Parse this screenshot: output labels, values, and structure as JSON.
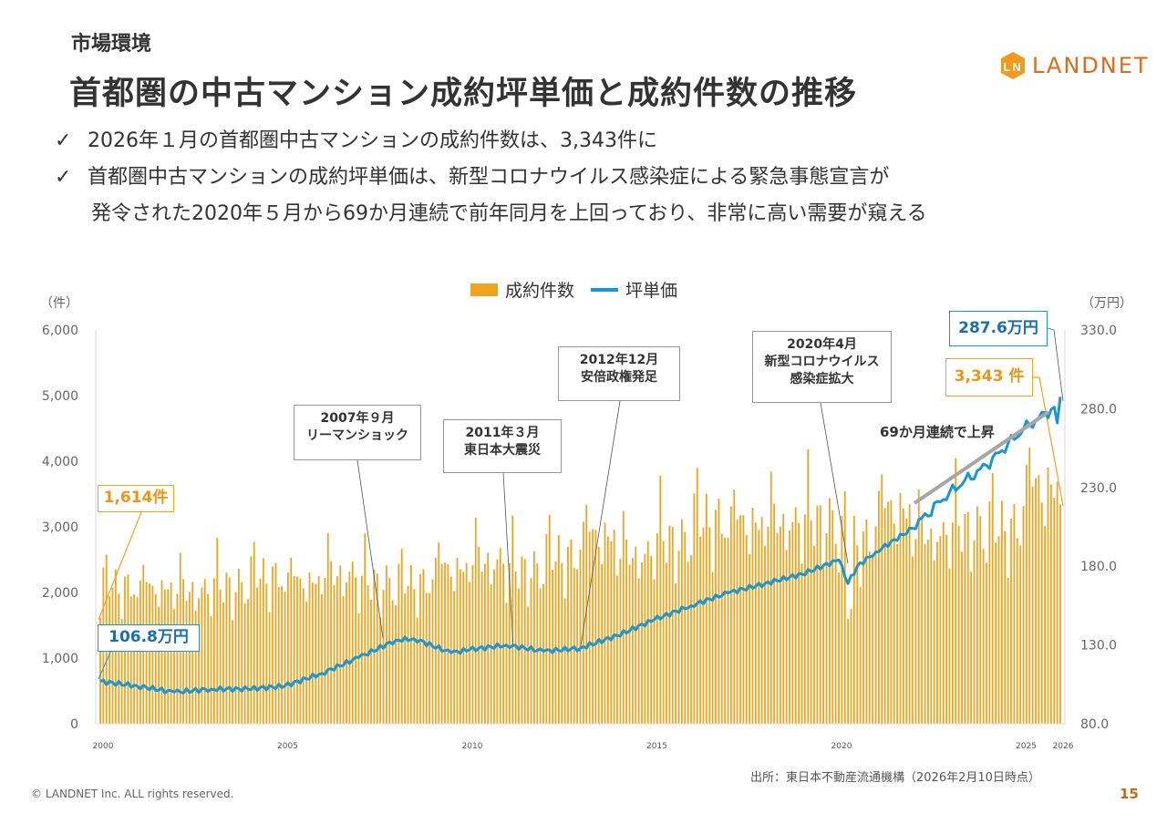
{
  "header": {
    "section": "市場環境",
    "title": "首都圏の中古マンション成約坪単価と成約件数の推移",
    "logo_text": "LANDNET",
    "bullets": [
      "2026年１月の首都圏中古マンションの成約件数は、3,343件に",
      "首都圏中古マンションの成約坪単価は、新型コロナウイルス感染症による緊急事態宣言が",
      "発令された2020年５月から69か月連続で前年同月を上回っており、非常に高い需要が窺える"
    ],
    "check_mark": "✓"
  },
  "chart_data": {
    "type": "bar+line",
    "legend": [
      "成約件数",
      "坪単価"
    ],
    "legend_position": "top-center",
    "y_left": {
      "unit": "（件）",
      "range": [
        0,
        6000
      ],
      "ticks": [
        "0",
        "1,000",
        "2,000",
        "3,000",
        "4,000",
        "5,000",
        "6,000"
      ]
    },
    "y_right": {
      "unit": "（万円）",
      "range": [
        80,
        330
      ],
      "ticks": [
        "80.0",
        "130.0",
        "180.0",
        "230.0",
        "280.0",
        "330.0"
      ]
    },
    "x_ticks": [
      {
        "label": "2000",
        "month_index": 0
      },
      {
        "label": "2005",
        "month_index": 60
      },
      {
        "label": "2010",
        "month_index": 120
      },
      {
        "label": "2015",
        "month_index": 180
      },
      {
        "label": "2020",
        "month_index": 240
      },
      {
        "label": "2025",
        "month_index": 300
      },
      {
        "label": "2026",
        "month_index": 312
      }
    ],
    "period": "2000-01 to 2026-01 (monthly, 313 points)",
    "count_annual_avg": {
      "2000": 2100,
      "2001": 2100,
      "2002": 2050,
      "2003": 2100,
      "2004": 2250,
      "2005": 2200,
      "2006": 2300,
      "2007": 2150,
      "2008": 2150,
      "2009": 2400,
      "2010": 2500,
      "2011": 2350,
      "2012": 2550,
      "2013": 2900,
      "2014": 2600,
      "2015": 2800,
      "2016": 3100,
      "2017": 3100,
      "2018": 3100,
      "2019": 3100,
      "2020": 2800,
      "2021": 3300,
      "2022": 2900,
      "2023": 3000,
      "2024": 3000,
      "2025": 3650
    },
    "count_seasonal_factor": [
      0.85,
      1.05,
      1.25,
      1.0,
      0.95,
      1.05,
      1.0,
      0.8,
      1.0,
      1.05,
      1.0,
      0.95
    ],
    "count_overrides": {
      "0": 1614,
      "243": 1600,
      "244": 1750,
      "312": 3343
    },
    "price_anchors": [
      [
        0,
        106.8
      ],
      [
        12,
        104
      ],
      [
        24,
        100
      ],
      [
        36,
        102
      ],
      [
        48,
        102
      ],
      [
        60,
        104
      ],
      [
        72,
        112
      ],
      [
        84,
        122
      ],
      [
        96,
        133
      ],
      [
        102,
        134
      ],
      [
        114,
        125
      ],
      [
        120,
        127
      ],
      [
        132,
        130
      ],
      [
        144,
        126
      ],
      [
        156,
        128
      ],
      [
        168,
        136
      ],
      [
        180,
        146
      ],
      [
        192,
        155
      ],
      [
        204,
        163
      ],
      [
        216,
        169
      ],
      [
        228,
        175
      ],
      [
        240,
        184
      ],
      [
        243,
        169
      ],
      [
        246,
        180
      ],
      [
        252,
        189
      ],
      [
        264,
        204
      ],
      [
        276,
        227
      ],
      [
        288,
        244
      ],
      [
        300,
        267
      ],
      [
        310,
        281
      ],
      [
        311,
        271
      ],
      [
        312,
        287.6
      ]
    ],
    "annotations": {
      "start_count": "1,614件",
      "start_price": "106.8万円",
      "lehman_date": "2007年９月",
      "lehman": "リーマンショック",
      "quake_date": "2011年３月",
      "quake": "東日本大震災",
      "abe_date": "2012年12月",
      "abe": "安倍政権発足",
      "covid_date": "2020年4月",
      "covid_1": "新型コロナウイルス",
      "covid_2": "感染症拡大",
      "end_price": "287.6万円",
      "end_count": "3,343 件",
      "trend": "69か月連続で上昇"
    }
  },
  "colors": {
    "bar": "#f0a41e",
    "line": "#1a96d0",
    "trend": "#a6a6a6"
  },
  "footer": {
    "source": "出所：東日本不動産流通機構（2026年2月10日時点）",
    "copyright": "© LANDNET Inc. ALL rights reserved.",
    "page_number": "15"
  }
}
